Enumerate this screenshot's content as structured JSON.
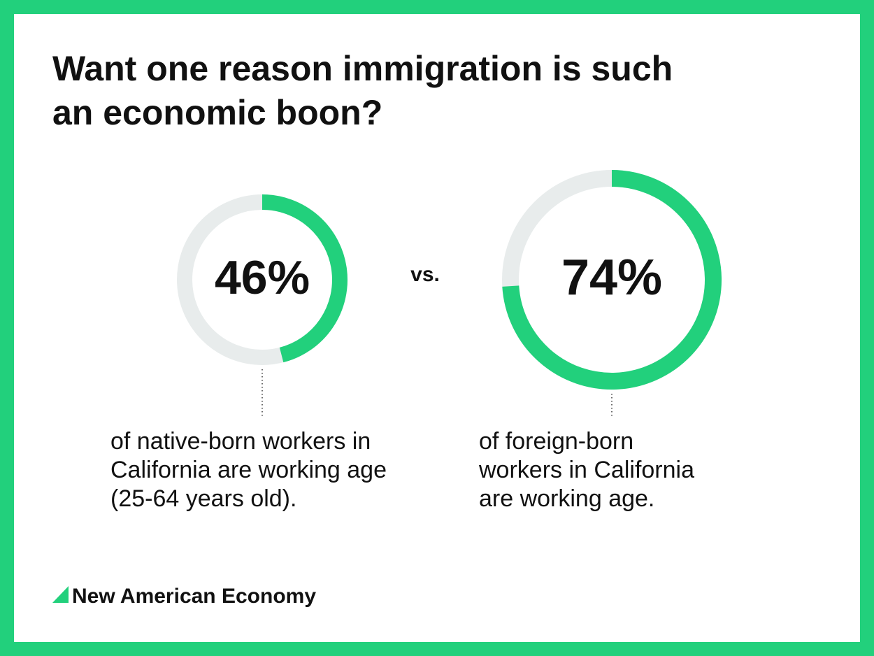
{
  "title": "Want one reason immigration is such an economic boon?",
  "separator": "vs.",
  "brand": "New American Economy",
  "chart_data": [
    {
      "type": "donut",
      "values": [
        46
      ],
      "value_labels": [
        "46%"
      ],
      "color": "#22d07c",
      "track_color": "#e8ecec",
      "caption": [
        "of native-born workers in",
        "California are working age",
        "(25-64 years old)."
      ]
    },
    {
      "type": "donut",
      "values": [
        74
      ],
      "value_labels": [
        "74%"
      ],
      "color": "#22d07c",
      "track_color": "#e8ecec",
      "caption": [
        "of foreign-born",
        "workers in California",
        "are working age."
      ]
    }
  ]
}
